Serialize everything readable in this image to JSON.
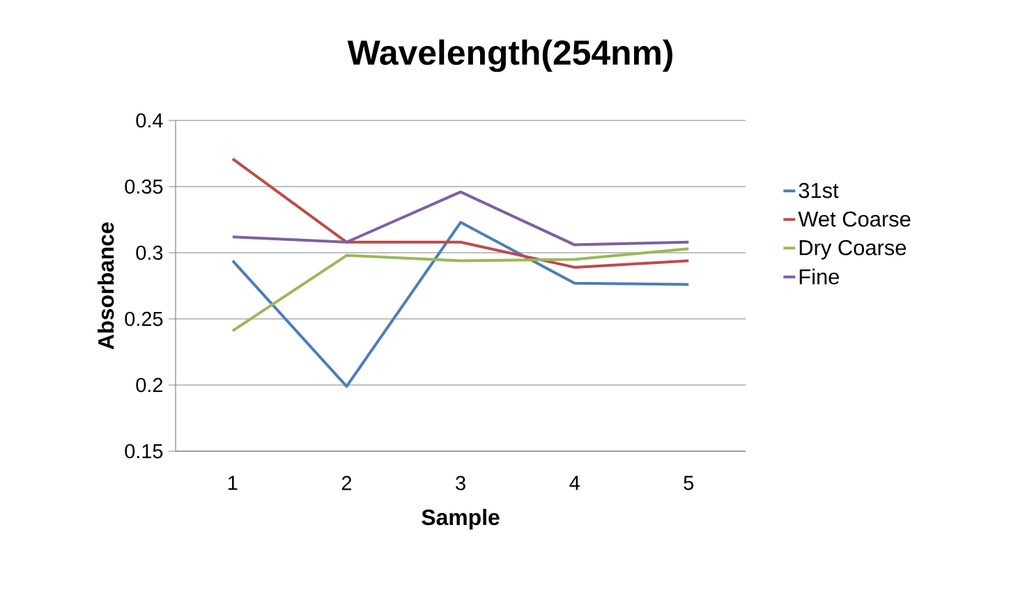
{
  "chart_data": {
    "type": "line",
    "title": "Wavelength(254nm)",
    "xlabel": "Sample",
    "ylabel": "Absorbance",
    "categories": [
      "1",
      "2",
      "3",
      "4",
      "5"
    ],
    "series": [
      {
        "name": "31st",
        "color": "#4a7ebb",
        "values": [
          0.294,
          0.199,
          0.323,
          0.277,
          0.276
        ]
      },
      {
        "name": "Wet Coarse",
        "color": "#be4b48",
        "values": [
          0.371,
          0.308,
          0.308,
          0.289,
          0.294
        ]
      },
      {
        "name": "Dry Coarse",
        "color": "#98b954",
        "values": [
          0.241,
          0.298,
          0.294,
          0.295,
          0.303
        ]
      },
      {
        "name": "Fine",
        "color": "#7d60a0",
        "values": [
          0.312,
          0.308,
          0.346,
          0.306,
          0.308
        ]
      }
    ],
    "ylim": [
      0.15,
      0.4
    ],
    "yticks": [
      0.15,
      0.2,
      0.25,
      0.3,
      0.35,
      0.4
    ],
    "grid": "y",
    "legend": "right",
    "marker": "none",
    "line_style": "solid"
  }
}
